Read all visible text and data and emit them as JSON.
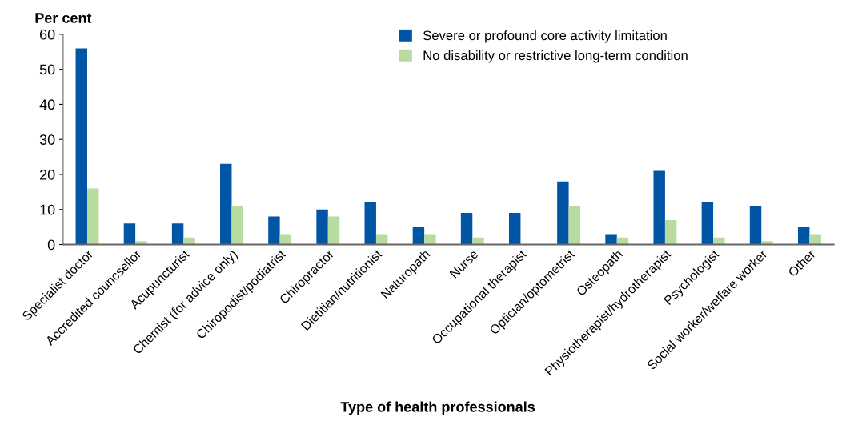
{
  "chart_data": {
    "type": "bar",
    "ylabel": "Per cent",
    "xlabel": "Type of health professionals",
    "categories": [
      "Specialist doctor",
      "Accredited councsellor",
      "Acupuncturist",
      "Chemist (for advice only)",
      "Chiropodist/podiatrist",
      "Chiropractor",
      "Dietitian/nutritionist",
      "Naturopath",
      "Nurse",
      "Occupational therapist",
      "Optician/optometrist",
      "Osteopath",
      "Physiotherapist/hydrotherapist",
      "Psychologist",
      "Social worker/welfare worker",
      "Other"
    ],
    "series": [
      {
        "name": "Severe or profound core activity limitation",
        "color": "#0055a5",
        "values": [
          56,
          6,
          6,
          23,
          8,
          10,
          12,
          5,
          9,
          9,
          18,
          3,
          21,
          12,
          11,
          5
        ]
      },
      {
        "name": "No disability or restrictive long-term condition",
        "color": "#b8dba0",
        "values": [
          16,
          1,
          2,
          11,
          3,
          8,
          3,
          3,
          2,
          0,
          11,
          2,
          7,
          2,
          1,
          3
        ]
      }
    ],
    "ylim": [
      0,
      60
    ],
    "yticks": [
      0,
      10,
      20,
      30,
      40,
      50,
      60
    ],
    "grid": false,
    "legend": "top"
  }
}
